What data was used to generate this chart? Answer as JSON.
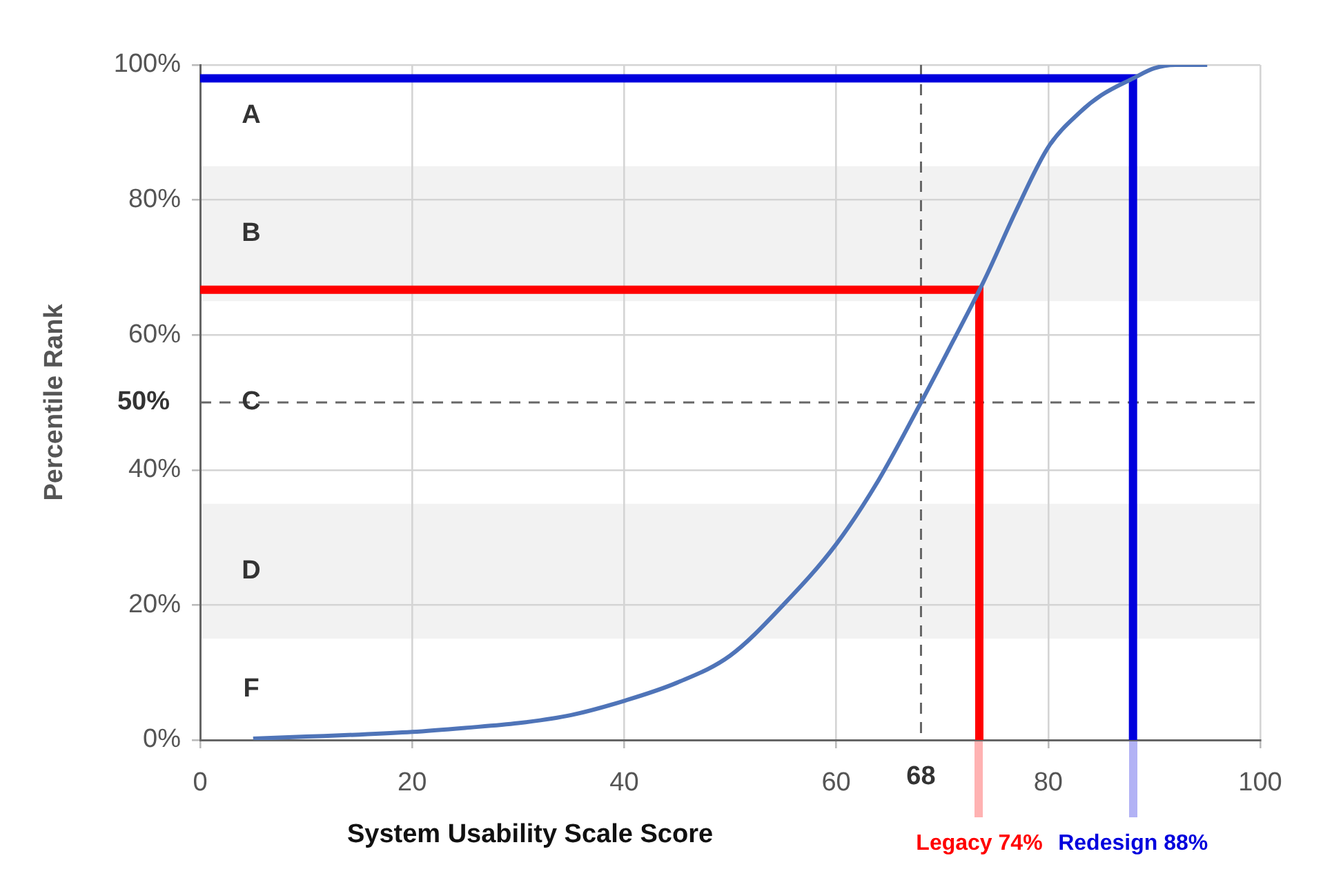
{
  "chart_data": {
    "type": "line",
    "xlabel": "System Usability Scale Score",
    "ylabel": "Percentile Rank",
    "xlim": [
      0,
      100
    ],
    "xticks": [
      0,
      20,
      40,
      60,
      80,
      100
    ],
    "ylim": [
      0,
      100
    ],
    "yticks": [
      {
        "value": 0,
        "label": "0%"
      },
      {
        "value": 20,
        "label": "20%"
      },
      {
        "value": 40,
        "label": "40%"
      },
      {
        "value": 60,
        "label": "60%"
      },
      {
        "value": 80,
        "label": "80%"
      },
      {
        "value": 100,
        "label": "100%"
      }
    ],
    "grid": true,
    "legend": false,
    "marker": "none",
    "line_style": "solid",
    "series": [
      {
        "color": "#4f74b8",
        "x": [
          5,
          10,
          15,
          20,
          25,
          30,
          35,
          40,
          45,
          50,
          55,
          60,
          64,
          68,
          71,
          74,
          77,
          80,
          83,
          85,
          88,
          90,
          92,
          95
        ],
        "values": [
          0.2,
          0.5,
          0.8,
          1.2,
          1.8,
          2.5,
          3.7,
          5.8,
          8.5,
          12.5,
          20,
          29,
          38.5,
          50,
          59,
          68.2,
          78.5,
          87.8,
          93,
          95.5,
          98,
          99.5,
          100,
          100
        ]
      },
      {
        "name": "Legacy 74%",
        "color": "#ff0000",
        "x": [
          0,
          73.5,
          73.5
        ],
        "values": [
          66.7,
          66.7,
          0
        ]
      },
      {
        "name": "Redesign 88%",
        "color": "#0000dd",
        "x": [
          0,
          88,
          88
        ],
        "values": [
          98,
          98,
          0
        ]
      }
    ],
    "ref_lines": [
      {
        "axis": "x",
        "value": 68,
        "label": "68",
        "color": "#666666",
        "line_style": "dashed"
      },
      {
        "axis": "y",
        "value": 50,
        "label": "50%",
        "color": "#666666",
        "line_style": "dashed"
      }
    ],
    "bands": [
      {
        "axis": "y",
        "from": 65,
        "to": 85,
        "label": "B",
        "color": "#f2f2f2"
      },
      {
        "axis": "y",
        "from": 15,
        "to": 35,
        "label": "D",
        "color": "#f2f2f2"
      }
    ],
    "annotations": [
      "A",
      "C",
      "F"
    ]
  }
}
